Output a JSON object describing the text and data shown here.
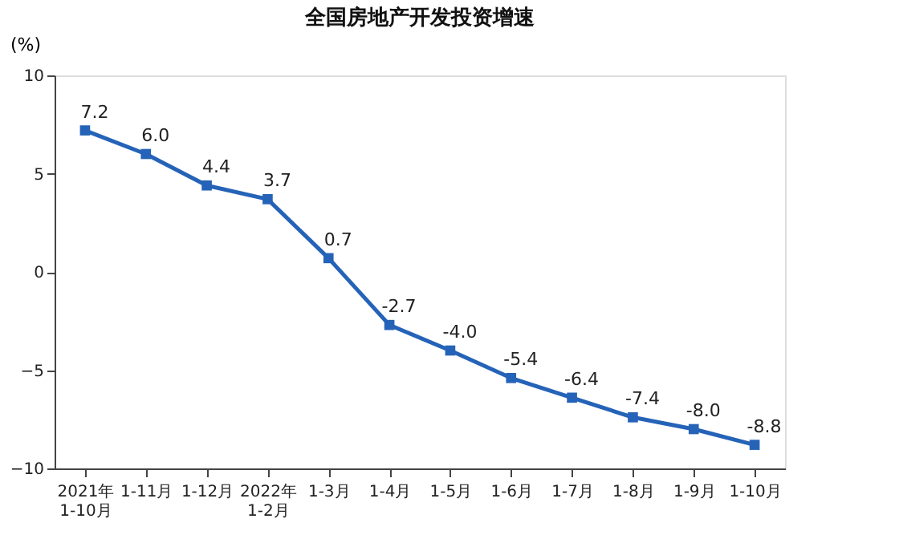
{
  "chart_data": {
    "type": "line",
    "title": "全国房地产开发投资增速",
    "ylabel": "(%)",
    "categories": [
      "2021年\n1-10月",
      "1-11月",
      "1-12月",
      "2022年\n1-2月",
      "1-3月",
      "1-4月",
      "1-5月",
      "1-6月",
      "1-7月",
      "1-8月",
      "1-9月",
      "1-10月"
    ],
    "series": [
      {
        "color": "#2563b8",
        "values": [
          7.2,
          6.0,
          4.4,
          3.7,
          0.7,
          -2.7,
          -4.0,
          -5.4,
          -6.4,
          -7.4,
          -8.0,
          -8.8
        ],
        "value_labels": [
          "7.2",
          "6.0",
          "4.4",
          "3.7",
          "0.7",
          "-2.7",
          "-4.0",
          "-5.4",
          "-6.4",
          "-7.4",
          "-8.0",
          "-8.8"
        ]
      }
    ],
    "ylim": [
      -10,
      10
    ],
    "yticks": [
      -10,
      -5,
      0,
      5,
      10
    ],
    "grid": false,
    "marker": "square",
    "line_style": "solid"
  }
}
